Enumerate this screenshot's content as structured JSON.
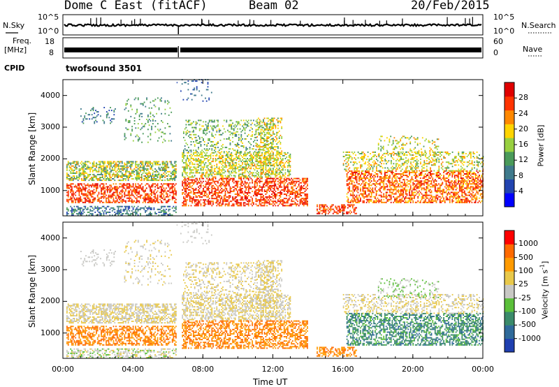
{
  "header": {
    "station": "Dome C East (fitACF)",
    "beam": "Beam 02",
    "date": "20/Feb/2015"
  },
  "top_panels": {
    "nsky_label": "N.Sky",
    "nsky_ticks": [
      "10^5",
      "10^0"
    ],
    "nsearch_label": "N.Search",
    "nsearch_ticks": [
      "10^5",
      "10^0"
    ],
    "freq_label_line1": "Freq.",
    "freq_label_line2": "[MHz]",
    "freq_ticks": [
      "18",
      "8"
    ],
    "nave_label": "Nave",
    "nave_ticks": [
      "60",
      "0"
    ],
    "cpid_label": "CPID",
    "cpid_value": "twofsound 3501"
  },
  "colors": {
    "power": [
      "#0000ff",
      "#2244b0",
      "#3f7a8c",
      "#4a9a5a",
      "#98d040",
      "#ffd400",
      "#ff8800",
      "#ff3300",
      "#e00000"
    ],
    "velocity": [
      "#1f3fb0",
      "#2f6a9a",
      "#3a8a6a",
      "#5bbf3a",
      "#c8c8c4",
      "#e8c84a",
      "#ff9a00",
      "#ff6a00",
      "#ff0000"
    ]
  },
  "chart_data": [
    {
      "type": "heatmap",
      "name": "power",
      "ylabel": "Slant Range [km]",
      "xlabel": "Time UT",
      "x_ticks": [
        "00:00",
        "04:00",
        "08:00",
        "12:00",
        "16:00",
        "20:00",
        "00:00"
      ],
      "y_ticks": [
        "1000",
        "2000",
        "3000",
        "4000"
      ],
      "ylim": [
        200,
        4500
      ],
      "colorbar_label": "Power [dB]",
      "colorbar_ticks": [
        "28",
        "24",
        "20",
        "16",
        "12",
        "8",
        "4"
      ],
      "colorbar_range": [
        0,
        30
      ]
    },
    {
      "type": "heatmap",
      "name": "velocity",
      "ylabel": "Slant Range [km]",
      "xlabel": "Time UT",
      "x_ticks": [
        "00:00",
        "04:00",
        "08:00",
        "12:00",
        "16:00",
        "20:00",
        "00:00"
      ],
      "y_ticks": [
        "1000",
        "2000",
        "3000",
        "4000"
      ],
      "ylim": [
        200,
        4500
      ],
      "colorbar_label": "Velocity [m s^-1]",
      "colorbar_ticks": [
        "1000",
        "500",
        "100",
        "25",
        "-25",
        "-100",
        "-500",
        "-1000"
      ]
    }
  ],
  "axis": {
    "xlabel": "Time UT"
  }
}
